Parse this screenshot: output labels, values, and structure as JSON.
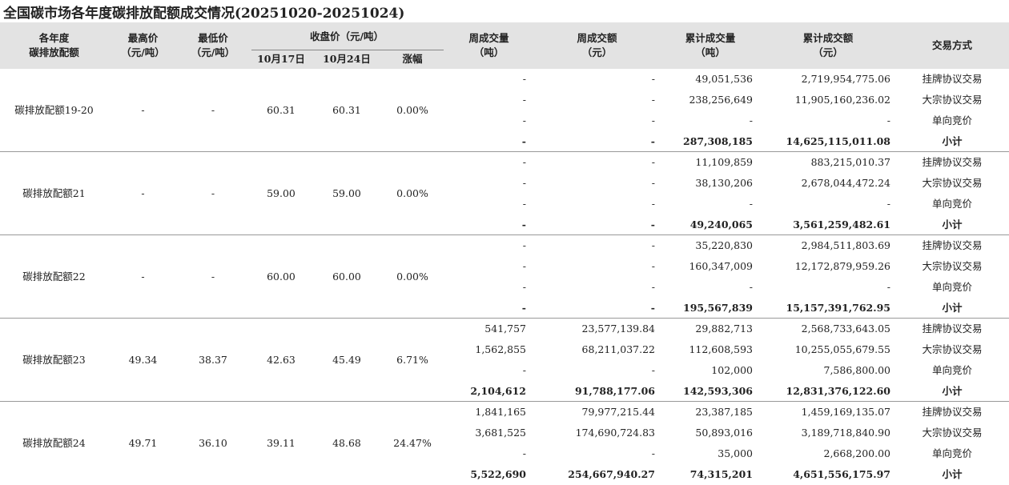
{
  "title": "全国碳市场各年度碳排放配额成交情况(20251020-20251024)",
  "table": {
    "header": {
      "left": [
        [
          "各年度",
          "碳排放配额"
        ],
        [
          "最高价",
          "（元/吨）"
        ],
        [
          "最低价",
          "（元/吨）"
        ]
      ],
      "close_group": {
        "title": "收盘价（元/吨）",
        "sub": [
          "10月17日",
          "10月24日",
          "涨幅"
        ]
      },
      "right": [
        [
          "周成交量",
          "（吨）"
        ],
        [
          "周成交额",
          "（元）"
        ],
        [
          "累计成交量",
          "（吨）"
        ],
        [
          "累计成交额",
          "（元）"
        ],
        [
          "交易方式"
        ]
      ]
    },
    "groups": [
      {
        "name": "碳排放配额19-20",
        "high": "-",
        "low": "-",
        "close_1017": "60.31",
        "close_1024": "60.31",
        "change": "0.00%",
        "rows": [
          [
            "-",
            "-",
            "49,051,536",
            "2,719,954,775.06",
            "挂牌协议交易"
          ],
          [
            "-",
            "-",
            "238,256,649",
            "11,905,160,236.02",
            "大宗协议交易"
          ],
          [
            "-",
            "-",
            "-",
            "-",
            "单向竞价"
          ],
          [
            "-",
            "-",
            "287,308,185",
            "14,625,115,011.08",
            "小计"
          ]
        ]
      },
      {
        "name": "碳排放配额21",
        "high": "-",
        "low": "-",
        "close_1017": "59.00",
        "close_1024": "59.00",
        "change": "0.00%",
        "rows": [
          [
            "-",
            "-",
            "11,109,859",
            "883,215,010.37",
            "挂牌协议交易"
          ],
          [
            "-",
            "-",
            "38,130,206",
            "2,678,044,472.24",
            "大宗协议交易"
          ],
          [
            "-",
            "-",
            "-",
            "-",
            "单向竞价"
          ],
          [
            "-",
            "-",
            "49,240,065",
            "3,561,259,482.61",
            "小计"
          ]
        ]
      },
      {
        "name": "碳排放配额22",
        "high": "-",
        "low": "-",
        "close_1017": "60.00",
        "close_1024": "60.00",
        "change": "0.00%",
        "rows": [
          [
            "-",
            "-",
            "35,220,830",
            "2,984,511,803.69",
            "挂牌协议交易"
          ],
          [
            "-",
            "-",
            "160,347,009",
            "12,172,879,959.26",
            "大宗协议交易"
          ],
          [
            "-",
            "-",
            "-",
            "-",
            "单向竞价"
          ],
          [
            "-",
            "-",
            "195,567,839",
            "15,157,391,762.95",
            "小计"
          ]
        ]
      },
      {
        "name": "碳排放配额23",
        "high": "49.34",
        "low": "38.37",
        "close_1017": "42.63",
        "close_1024": "45.49",
        "change": "6.71%",
        "rows": [
          [
            "541,757",
            "23,577,139.84",
            "29,882,713",
            "2,568,733,643.05",
            "挂牌协议交易"
          ],
          [
            "1,562,855",
            "68,211,037.22",
            "112,608,593",
            "10,255,055,679.55",
            "大宗协议交易"
          ],
          [
            "-",
            "-",
            "102,000",
            "7,586,800.00",
            "单向竞价"
          ],
          [
            "2,104,612",
            "91,788,177.06",
            "142,593,306",
            "12,831,376,122.60",
            "小计"
          ]
        ]
      },
      {
        "name": "碳排放配额24",
        "high": "49.71",
        "low": "36.10",
        "close_1017": "39.11",
        "close_1024": "48.68",
        "change": "24.47%",
        "rows": [
          [
            "1,841,165",
            "79,977,215.44",
            "23,387,185",
            "1,459,169,135.07",
            "挂牌协议交易"
          ],
          [
            "3,681,525",
            "174,690,724.83",
            "50,893,016",
            "3,189,718,840.90",
            "大宗协议交易"
          ],
          [
            "-",
            "-",
            "35,000",
            "2,668,200.00",
            "单向竞价"
          ],
          [
            "5,522,690",
            "254,667,940.27",
            "74,315,201",
            "4,651,556,175.97",
            "小计"
          ]
        ]
      }
    ]
  }
}
